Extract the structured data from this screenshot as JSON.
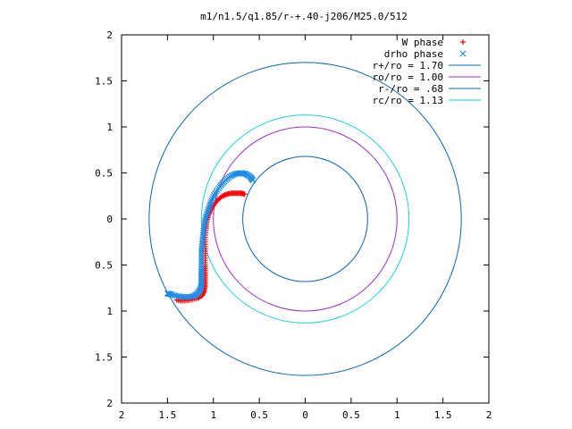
{
  "chart_data": {
    "type": "scatter",
    "title": "m1/n1.5/q1.85/r-+.40-j206/M25.0/512",
    "xlabel": "",
    "ylabel": "",
    "xlim": [
      -2,
      2
    ],
    "ylim": [
      -2,
      2
    ],
    "grid": false,
    "legend_position": "top-right",
    "x_ticks": [
      -2,
      -1.5,
      -1,
      -0.5,
      0,
      0.5,
      1,
      1.5,
      2
    ],
    "x_tick_labels": [
      "2",
      "1.5",
      "1",
      "0.5",
      "0",
      "0.5",
      "1",
      "1.5",
      "2"
    ],
    "y_ticks": [
      2,
      1.5,
      1,
      0.5,
      0,
      -0.5,
      -1,
      -1.5,
      -2
    ],
    "y_tick_labels": [
      "2",
      "1.5",
      "1",
      "0.5",
      "0",
      "0.5",
      "1",
      "1.5",
      "2"
    ],
    "circles": [
      {
        "name": "r+/ro = 1.70",
        "r": 1.7,
        "color": "#0a64b4"
      },
      {
        "name": "ro/ro = 1.00",
        "r": 1.0,
        "color": "#9b30c8"
      },
      {
        "name": "r-/ro = .68",
        "r": 0.68,
        "color": "#0a64b4"
      },
      {
        "name": "rc/ro = 1.13",
        "r": 1.13,
        "color": "#1ecfd8"
      }
    ],
    "series": [
      {
        "name": "W phase",
        "marker": "+",
        "color": "#ff0000",
        "points": [
          [
            -0.66,
            0.27
          ],
          [
            -0.7,
            0.28
          ],
          [
            -0.75,
            0.28
          ],
          [
            -0.8,
            0.28
          ],
          [
            -0.85,
            0.27
          ],
          [
            -0.9,
            0.25
          ],
          [
            -0.95,
            0.21
          ],
          [
            -1.0,
            0.15
          ],
          [
            -1.03,
            0.1
          ],
          [
            -1.05,
            0.05
          ],
          [
            -1.07,
            -0.02
          ],
          [
            -1.08,
            -0.1
          ],
          [
            -1.09,
            -0.2
          ],
          [
            -1.09,
            -0.3
          ],
          [
            -1.09,
            -0.4
          ],
          [
            -1.09,
            -0.5
          ],
          [
            -1.09,
            -0.58
          ],
          [
            -1.09,
            -0.65
          ],
          [
            -1.09,
            -0.72
          ],
          [
            -1.1,
            -0.78
          ],
          [
            -1.12,
            -0.83
          ],
          [
            -1.17,
            -0.86
          ],
          [
            -1.25,
            -0.88
          ],
          [
            -1.33,
            -0.89
          ],
          [
            -1.4,
            -0.88
          ]
        ]
      },
      {
        "name": "drho phase",
        "marker": "x",
        "color": "#1e8ce6",
        "points": [
          [
            -0.57,
            0.42
          ],
          [
            -0.6,
            0.46
          ],
          [
            -0.65,
            0.49
          ],
          [
            -0.7,
            0.5
          ],
          [
            -0.76,
            0.49
          ],
          [
            -0.82,
            0.46
          ],
          [
            -0.88,
            0.41
          ],
          [
            -0.93,
            0.35
          ],
          [
            -0.98,
            0.28
          ],
          [
            -1.02,
            0.2
          ],
          [
            -1.05,
            0.12
          ],
          [
            -1.08,
            0.03
          ],
          [
            -1.1,
            -0.06
          ],
          [
            -1.11,
            -0.15
          ],
          [
            -1.12,
            -0.25
          ],
          [
            -1.13,
            -0.35
          ],
          [
            -1.13,
            -0.45
          ],
          [
            -1.13,
            -0.55
          ],
          [
            -1.13,
            -0.63
          ],
          [
            -1.13,
            -0.7
          ],
          [
            -1.14,
            -0.76
          ],
          [
            -1.17,
            -0.81
          ],
          [
            -1.22,
            -0.84
          ],
          [
            -1.3,
            -0.85
          ],
          [
            -1.38,
            -0.84
          ],
          [
            -1.46,
            -0.82
          ],
          [
            -1.5,
            -0.81
          ]
        ]
      }
    ]
  }
}
